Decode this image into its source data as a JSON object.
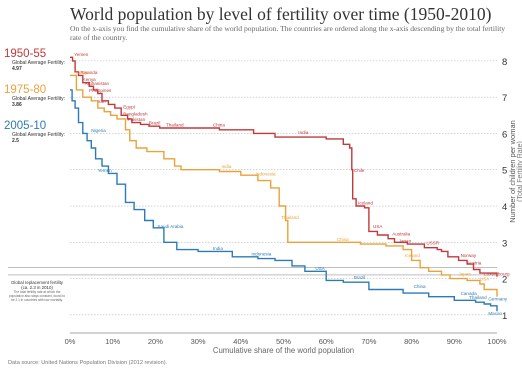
{
  "title": "World population by level of fertility over time (1950-2010)",
  "subtitle": "On the x-axis you find the cumulative share of the world population. The countries are ordered along the x-axis descending by the total fertility rate of the country.",
  "source": "Data source: United Nations Population Division (2012 revision).",
  "colors": {
    "1950-55": "#c0393b",
    "1975-80": "#e8a33a",
    "2005-10": "#2c7bb6"
  },
  "legend": [
    {
      "years": "1950-55",
      "label": "Global Average Fertility:",
      "value": "4.97",
      "color": "#c0393b"
    },
    {
      "years": "1975-80",
      "label": "Global Average Fertility:",
      "value": "3.86",
      "color": "#e8a33a"
    },
    {
      "years": "2005-10",
      "label": "Global Average Fertility:",
      "value": "2.5",
      "color": "#2c7bb6"
    }
  ],
  "replacement_note": {
    "line1": "Global replacement fertility",
    "line2": "(ca. 2.3 in 2010)",
    "small": "The total fertility rate at which the population also stays constant, found to be 2.1 in countries with low mortality."
  },
  "chart_data": {
    "type": "line",
    "xlabel": "Cumulative share of the world population",
    "ylabel": "Number of children per woman",
    "ylabel2": "(Total Fertility Rate)",
    "xlim": [
      0,
      100
    ],
    "ylim": [
      0.5,
      8.3
    ],
    "x_ticks": [
      "0%",
      "10%",
      "20%",
      "30%",
      "40%",
      "50%",
      "60%",
      "70%",
      "80%",
      "90%",
      "100%"
    ],
    "y_ticks": [
      1,
      2,
      3,
      4,
      5,
      6,
      7,
      8
    ],
    "grid": "horizontal dotted",
    "replacement_lines": [
      2.1,
      2.3
    ],
    "series": [
      {
        "name": "1950-55",
        "color": "#c0393b",
        "points": [
          [
            0,
            8.1
          ],
          [
            0.6,
            8.0
          ],
          [
            1.2,
            7.7
          ],
          [
            2.0,
            7.6
          ],
          [
            3.0,
            7.4
          ],
          [
            4.5,
            7.3
          ],
          [
            5.5,
            7.2
          ],
          [
            6.5,
            7.1
          ],
          [
            7.5,
            6.9
          ],
          [
            9.0,
            6.8
          ],
          [
            10.5,
            6.7
          ],
          [
            12.0,
            6.5
          ],
          [
            13.5,
            6.4
          ],
          [
            14.5,
            6.3
          ],
          [
            16.5,
            6.25
          ],
          [
            18.5,
            6.2
          ],
          [
            21.0,
            6.15
          ],
          [
            25.0,
            6.15
          ],
          [
            35.0,
            6.1
          ],
          [
            43.0,
            6.0
          ],
          [
            48.0,
            5.9
          ],
          [
            53.0,
            5.9
          ],
          [
            60.0,
            5.85
          ],
          [
            62.0,
            5.85
          ],
          [
            64.0,
            5.7
          ],
          [
            65.5,
            5.6
          ],
          [
            66.0,
            5.0
          ],
          [
            66.2,
            4.2
          ],
          [
            67.0,
            4.0
          ],
          [
            69.0,
            3.95
          ],
          [
            70.0,
            3.3
          ],
          [
            72.0,
            3.2
          ],
          [
            74.5,
            3.1
          ],
          [
            76.0,
            3.0
          ],
          [
            79.0,
            2.95
          ],
          [
            83.0,
            2.85
          ],
          [
            86.0,
            2.8
          ],
          [
            87.0,
            2.75
          ],
          [
            88.5,
            2.6
          ],
          [
            91.0,
            2.5
          ],
          [
            93.0,
            2.4
          ],
          [
            94.5,
            2.25
          ],
          [
            96.0,
            2.15
          ],
          [
            100.0,
            2.05
          ]
        ]
      },
      {
        "name": "1975-80",
        "color": "#e8a33a",
        "points": [
          [
            0,
            7.6
          ],
          [
            1.5,
            7.2
          ],
          [
            3.0,
            7.0
          ],
          [
            5.0,
            6.9
          ],
          [
            6.5,
            6.7
          ],
          [
            8.0,
            6.6
          ],
          [
            9.5,
            6.5
          ],
          [
            11.0,
            6.4
          ],
          [
            13.0,
            6.1
          ],
          [
            14.0,
            5.8
          ],
          [
            15.5,
            5.6
          ],
          [
            18.0,
            5.5
          ],
          [
            22.0,
            5.3
          ],
          [
            24.5,
            5.1
          ],
          [
            26.0,
            5.0
          ],
          [
            35.0,
            4.95
          ],
          [
            40.0,
            4.85
          ],
          [
            44.0,
            4.7
          ],
          [
            47.0,
            4.5
          ],
          [
            49.0,
            4.0
          ],
          [
            50.5,
            3.6
          ],
          [
            51.0,
            3.0
          ],
          [
            60.0,
            3.0
          ],
          [
            68.0,
            2.95
          ],
          [
            74.0,
            2.9
          ],
          [
            78.0,
            2.8
          ],
          [
            80.0,
            2.5
          ],
          [
            82.0,
            2.3
          ],
          [
            84.0,
            2.2
          ],
          [
            87.0,
            2.1
          ],
          [
            89.0,
            2.0
          ],
          [
            93.0,
            1.95
          ],
          [
            96.0,
            1.85
          ],
          [
            97.0,
            1.7
          ],
          [
            100.0,
            1.5
          ]
        ]
      },
      {
        "name": "2005-10",
        "color": "#2c7bb6",
        "points": [
          [
            0,
            7.2
          ],
          [
            0.5,
            6.9
          ],
          [
            1.2,
            6.7
          ],
          [
            2.0,
            6.3
          ],
          [
            3.0,
            6.0
          ],
          [
            4.0,
            5.8
          ],
          [
            5.0,
            5.6
          ],
          [
            6.0,
            5.3
          ],
          [
            7.5,
            5.1
          ],
          [
            9.0,
            4.9
          ],
          [
            11.0,
            4.6
          ],
          [
            13.0,
            4.1
          ],
          [
            15.0,
            3.9
          ],
          [
            17.5,
            3.6
          ],
          [
            19.5,
            3.4
          ],
          [
            22.0,
            3.0
          ],
          [
            25.0,
            2.8
          ],
          [
            30.0,
            2.75
          ],
          [
            38.0,
            2.6
          ],
          [
            44.0,
            2.55
          ],
          [
            48.0,
            2.5
          ],
          [
            52.0,
            2.35
          ],
          [
            55.0,
            2.2
          ],
          [
            60.0,
            1.95
          ],
          [
            64.0,
            1.9
          ],
          [
            70.0,
            1.7
          ],
          [
            78.0,
            1.6
          ],
          [
            84.0,
            1.5
          ],
          [
            90.0,
            1.4
          ],
          [
            95.0,
            1.35
          ],
          [
            97.0,
            1.3
          ],
          [
            98.5,
            1.25
          ],
          [
            100.0,
            1.1
          ]
        ]
      }
    ],
    "annotations": [
      {
        "text": "Yemen",
        "series": "1950-55",
        "x": 0.5,
        "y": 8.1
      },
      {
        "text": "Rwanda",
        "series": "1950-55",
        "x": 2.0,
        "y": 7.6
      },
      {
        "text": "Kenya",
        "series": "1950-55",
        "x": 2.5,
        "y": 7.4
      },
      {
        "text": "Afghanistan",
        "series": "1950-55",
        "x": 3.0,
        "y": 7.3
      },
      {
        "text": "Philippines",
        "series": "1950-55",
        "x": 4.0,
        "y": 7.1
      },
      {
        "text": "Iran",
        "series": "1950-55",
        "x": 6.0,
        "y": 6.8
      },
      {
        "text": "Egypt",
        "series": "1950-55",
        "x": 12.0,
        "y": 6.65
      },
      {
        "text": "Bangladesh",
        "series": "1950-55",
        "x": 12.0,
        "y": 6.45
      },
      {
        "text": "Pakistan",
        "series": "1950-55",
        "x": 13.0,
        "y": 6.3
      },
      {
        "text": "Brazil",
        "series": "1950-55",
        "x": 18.0,
        "y": 6.2
      },
      {
        "text": "Thailand",
        "series": "1950-55",
        "x": 22.0,
        "y": 6.15
      },
      {
        "text": "China",
        "series": "1950-55",
        "x": 33.0,
        "y": 6.15
      },
      {
        "text": "India",
        "series": "1950-55",
        "x": 53.0,
        "y": 5.95
      },
      {
        "text": "Chile",
        "series": "1950-55",
        "x": 66.0,
        "y": 4.9
      },
      {
        "text": "Iceland",
        "series": "1950-55",
        "x": 67.0,
        "y": 4.0
      },
      {
        "text": "USA",
        "series": "1950-55",
        "x": 70.5,
        "y": 3.35
      },
      {
        "text": "Australia",
        "series": "1950-55",
        "x": 75.0,
        "y": 3.15
      },
      {
        "text": "Japan",
        "series": "1950-55",
        "x": 76.5,
        "y": 2.95
      },
      {
        "text": "USSR",
        "series": "1950-55",
        "x": 83.0,
        "y": 2.9
      },
      {
        "text": "Norway",
        "series": "1950-55",
        "x": 91.0,
        "y": 2.55
      },
      {
        "text": "Austria",
        "series": "1950-55",
        "x": 92.5,
        "y": 2.35
      },
      {
        "text": "Luxembourg",
        "series": "1950-55",
        "x": 96.5,
        "y": 2.05
      },
      {
        "text": "Nigeria",
        "series": "2005-10",
        "x": 4.5,
        "y": 6.0
      },
      {
        "text": "Yemen",
        "series": "2005-10",
        "x": 6.0,
        "y": 4.9
      },
      {
        "text": "Saudi Arabia",
        "series": "2005-10",
        "x": 20.0,
        "y": 3.35
      },
      {
        "text": "India",
        "series": "2005-10",
        "x": 33.0,
        "y": 2.75
      },
      {
        "text": "Indonesia",
        "series": "2005-10",
        "x": 42.0,
        "y": 2.6
      },
      {
        "text": "USA",
        "series": "2005-10",
        "x": 57.0,
        "y": 2.2
      },
      {
        "text": "Brazil",
        "series": "2005-10",
        "x": 66.0,
        "y": 1.95
      },
      {
        "text": "China",
        "series": "2005-10",
        "x": 80.0,
        "y": 1.7
      },
      {
        "text": "Canada",
        "series": "2005-10",
        "x": 91.0,
        "y": 1.5
      },
      {
        "text": "Thailand",
        "series": "2005-10",
        "x": 93.0,
        "y": 1.4
      },
      {
        "text": "Germany",
        "series": "2005-10",
        "x": 97.5,
        "y": 1.35
      },
      {
        "text": "Macao",
        "series": "2005-10",
        "x": 97.5,
        "y": 0.95
      },
      {
        "text": "Kenya",
        "series": "1975-80",
        "x": 1.0,
        "y": 7.6
      },
      {
        "text": "India",
        "series": "1975-80",
        "x": 35.0,
        "y": 5.0
      },
      {
        "text": "Indonesia",
        "series": "1975-80",
        "x": 43.0,
        "y": 4.8
      },
      {
        "text": "Thailand",
        "series": "1975-80",
        "x": 49.0,
        "y": 3.6
      },
      {
        "text": "China",
        "series": "1975-80",
        "x": 62.0,
        "y": 3.0
      },
      {
        "text": "Iceland",
        "series": "1975-80",
        "x": 78.0,
        "y": 2.55
      },
      {
        "text": "Japan",
        "series": "1975-80",
        "x": 90.5,
        "y": 2.05
      },
      {
        "text": "USA",
        "series": "1975-80",
        "x": 95.5,
        "y": 1.9
      }
    ]
  }
}
